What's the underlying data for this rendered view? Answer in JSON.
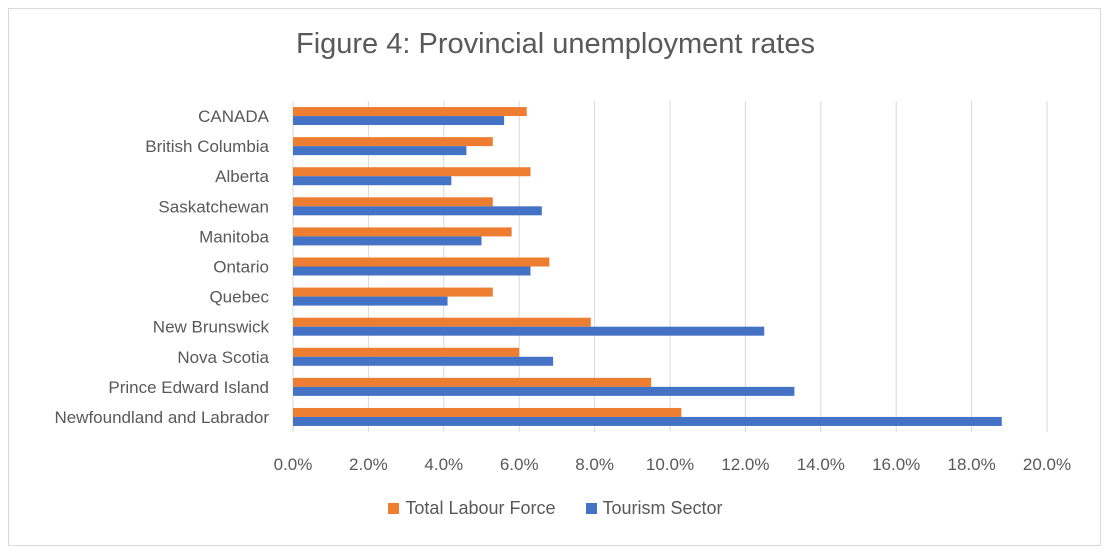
{
  "chart_data": {
    "type": "bar",
    "orientation": "horizontal",
    "title": "Figure 4: Provincial unemployment rates",
    "categories": [
      "CANADA",
      "British Columbia",
      "Alberta",
      "Saskatchewan",
      "Manitoba",
      "Ontario",
      "Quebec",
      "New Brunswick",
      "Nova Scotia",
      "Prince Edward Island",
      "Newfoundland and Labrador"
    ],
    "series": [
      {
        "name": "Total Labour Force",
        "color": "#ed7d31",
        "values": [
          6.2,
          5.3,
          6.3,
          5.3,
          5.8,
          6.8,
          5.3,
          7.9,
          6.0,
          9.5,
          10.3
        ]
      },
      {
        "name": "Tourism Sector",
        "color": "#4472c4",
        "values": [
          5.6,
          4.6,
          4.2,
          6.6,
          5.0,
          6.3,
          4.1,
          12.5,
          6.9,
          13.3,
          18.8
        ]
      }
    ],
    "xlim": [
      0,
      20
    ],
    "xticks": [
      "0.0%",
      "2.0%",
      "4.0%",
      "6.0%",
      "8.0%",
      "10.0%",
      "12.0%",
      "14.0%",
      "16.0%",
      "18.0%",
      "20.0%"
    ],
    "xlabel": "",
    "ylabel": "",
    "grid": "vertical",
    "legend_position": "bottom"
  }
}
